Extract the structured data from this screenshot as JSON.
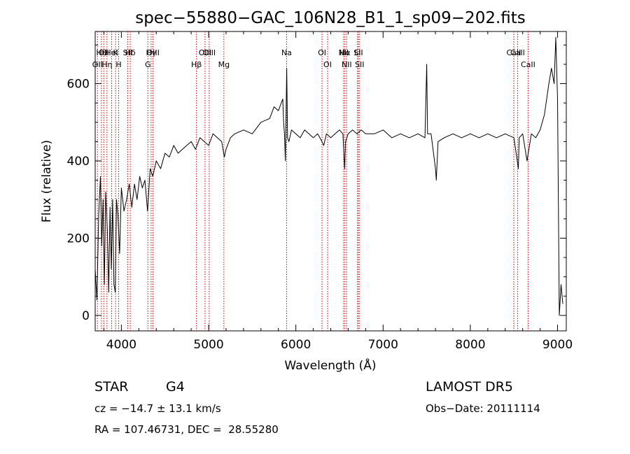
{
  "chart_data": {
    "type": "line",
    "title": "spec−55880−GAC_106N28_B1_1_sp09−202.fits",
    "xlabel": "Wavelength (Å)",
    "ylabel": "Flux (relative)",
    "xlim": [
      3700,
      9100
    ],
    "ylim": [
      -40,
      735
    ],
    "xticks": [
      4000,
      5000,
      6000,
      7000,
      8000,
      9000
    ],
    "yticks": [
      0,
      200,
      400,
      600
    ],
    "grid": false,
    "colors": {
      "spectrum": "#000000",
      "line_marker": "#cc0000"
    },
    "series": [
      {
        "values": [
          [
            3700,
            120
          ],
          [
            3720,
            40
          ],
          [
            3740,
            260
          ],
          [
            3760,
            360
          ],
          [
            3775,
            180
          ],
          [
            3790,
            300
          ],
          [
            3805,
            80
          ],
          [
            3820,
            320
          ],
          [
            3840,
            220
          ],
          [
            3855,
            60
          ],
          [
            3870,
            280
          ],
          [
            3885,
            120
          ],
          [
            3900,
            300
          ],
          [
            3915,
            80
          ],
          [
            3930,
            60
          ],
          [
            3945,
            300
          ],
          [
            3960,
            260
          ],
          [
            3980,
            160
          ],
          [
            4000,
            330
          ],
          [
            4030,
            270
          ],
          [
            4060,
            300
          ],
          [
            4090,
            340
          ],
          [
            4120,
            280
          ],
          [
            4150,
            340
          ],
          [
            4180,
            300
          ],
          [
            4210,
            360
          ],
          [
            4240,
            330
          ],
          [
            4270,
            350
          ],
          [
            4300,
            270
          ],
          [
            4330,
            380
          ],
          [
            4360,
            360
          ],
          [
            4400,
            400
          ],
          [
            4450,
            380
          ],
          [
            4500,
            420
          ],
          [
            4550,
            410
          ],
          [
            4600,
            440
          ],
          [
            4650,
            420
          ],
          [
            4700,
            430
          ],
          [
            4750,
            440
          ],
          [
            4800,
            450
          ],
          [
            4850,
            430
          ],
          [
            4900,
            460
          ],
          [
            4950,
            450
          ],
          [
            5000,
            440
          ],
          [
            5050,
            470
          ],
          [
            5100,
            460
          ],
          [
            5150,
            450
          ],
          [
            5180,
            410
          ],
          [
            5200,
            430
          ],
          [
            5250,
            460
          ],
          [
            5300,
            470
          ],
          [
            5400,
            480
          ],
          [
            5500,
            470
          ],
          [
            5600,
            500
          ],
          [
            5700,
            510
          ],
          [
            5750,
            540
          ],
          [
            5800,
            530
          ],
          [
            5850,
            560
          ],
          [
            5860,
            500
          ],
          [
            5870,
            470
          ],
          [
            5880,
            400
          ],
          [
            5895,
            640
          ],
          [
            5905,
            460
          ],
          [
            5920,
            450
          ],
          [
            5950,
            480
          ],
          [
            6000,
            470
          ],
          [
            6050,
            460
          ],
          [
            6100,
            480
          ],
          [
            6150,
            470
          ],
          [
            6200,
            460
          ],
          [
            6250,
            470
          ],
          [
            6300,
            450
          ],
          [
            6320,
            440
          ],
          [
            6350,
            470
          ],
          [
            6400,
            460
          ],
          [
            6450,
            470
          ],
          [
            6500,
            480
          ],
          [
            6540,
            470
          ],
          [
            6560,
            380
          ],
          [
            6570,
            450
          ],
          [
            6600,
            470
          ],
          [
            6650,
            480
          ],
          [
            6700,
            470
          ],
          [
            6750,
            480
          ],
          [
            6800,
            470
          ],
          [
            6900,
            470
          ],
          [
            7000,
            480
          ],
          [
            7100,
            460
          ],
          [
            7200,
            470
          ],
          [
            7300,
            460
          ],
          [
            7400,
            470
          ],
          [
            7480,
            460
          ],
          [
            7500,
            650
          ],
          [
            7510,
            470
          ],
          [
            7550,
            470
          ],
          [
            7600,
            380
          ],
          [
            7610,
            350
          ],
          [
            7630,
            450
          ],
          [
            7700,
            460
          ],
          [
            7800,
            470
          ],
          [
            7900,
            460
          ],
          [
            8000,
            470
          ],
          [
            8100,
            460
          ],
          [
            8200,
            470
          ],
          [
            8300,
            460
          ],
          [
            8400,
            470
          ],
          [
            8500,
            460
          ],
          [
            8550,
            380
          ],
          [
            8560,
            460
          ],
          [
            8600,
            470
          ],
          [
            8650,
            400
          ],
          [
            8700,
            470
          ],
          [
            8750,
            460
          ],
          [
            8800,
            480
          ],
          [
            8850,
            520
          ],
          [
            8900,
            600
          ],
          [
            8930,
            640
          ],
          [
            8960,
            600
          ],
          [
            8980,
            720
          ],
          [
            9000,
            560
          ],
          [
            9020,
            0
          ],
          [
            9040,
            80
          ],
          [
            9060,
            30
          ]
        ]
      }
    ],
    "lines": [
      {
        "w": 3726,
        "label": "OII",
        "row": 2
      },
      {
        "w": 3771,
        "label": "Hθ",
        "row": 1
      },
      {
        "w": 3798,
        "label": "OII",
        "row": 1
      },
      {
        "w": 3835,
        "label": "Hη",
        "row": 2
      },
      {
        "w": 3889,
        "label": "HeI",
        "row": 1
      },
      {
        "w": 3934,
        "label": "K",
        "row": 1
      },
      {
        "w": 3969,
        "label": "H",
        "row": 2
      },
      {
        "w": 4072,
        "label": "SII",
        "row": 1
      },
      {
        "w": 4102,
        "label": "Hδ",
        "row": 1
      },
      {
        "w": 4304,
        "label": "G",
        "row": 2
      },
      {
        "w": 4341,
        "label": "Hγ",
        "row": 1
      },
      {
        "w": 4363,
        "label": "OIII",
        "row": 1
      },
      {
        "w": 4861,
        "label": "Hβ",
        "row": 2
      },
      {
        "w": 4959,
        "label": "OIII",
        "row": 1
      },
      {
        "w": 5007,
        "label": "OIII",
        "row": 1
      },
      {
        "w": 5175,
        "label": "Mg",
        "row": 2
      },
      {
        "w": 5894,
        "label": "Na",
        "row": 1
      },
      {
        "w": 6300,
        "label": "OI",
        "row": 1
      },
      {
        "w": 6364,
        "label": "OI",
        "row": 2
      },
      {
        "w": 6548,
        "label": "NII",
        "row": 1
      },
      {
        "w": 6563,
        "label": "Hα",
        "row": 1
      },
      {
        "w": 6583,
        "label": "NII",
        "row": 2
      },
      {
        "w": 6708,
        "label": "Li",
        "row": 1
      },
      {
        "w": 6716,
        "label": "SII",
        "row": 1
      },
      {
        "w": 6731,
        "label": "SII",
        "row": 2
      },
      {
        "w": 8498,
        "label": "CaII",
        "row": 1
      },
      {
        "w": 8542,
        "label": "CaII",
        "row": 1
      },
      {
        "w": 8662,
        "label": "CaII",
        "row": 2
      }
    ]
  },
  "info": {
    "object_class": "STAR",
    "subclass": "G4",
    "survey": "LAMOST DR5",
    "velocity": "cz = −14.7 ± 13.1 km/s",
    "obs_date": "Obs−Date: 20111114",
    "coords": "RA = 107.46731, DEC =  28.55280"
  }
}
